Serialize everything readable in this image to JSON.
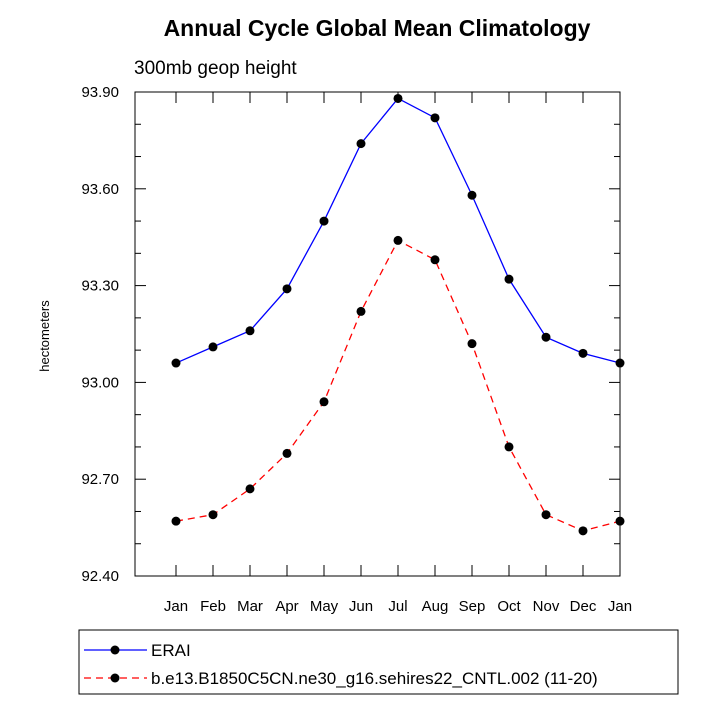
{
  "chart_data": {
    "type": "line",
    "title": "Annual Cycle Global Mean Climatology",
    "subtitle": "300mb geop height",
    "xlabel": "",
    "ylabel": "hectometers",
    "categories": [
      "Jan",
      "Feb",
      "Mar",
      "Apr",
      "May",
      "Jun",
      "Jul",
      "Aug",
      "Sep",
      "Oct",
      "Nov",
      "Dec",
      "Jan"
    ],
    "yticks": [
      "93.90",
      "93.60",
      "93.30",
      "93.00",
      "92.70",
      "92.40"
    ],
    "ylim": [
      92.4,
      93.9
    ],
    "grid": false,
    "legend_position": "bottom",
    "series": [
      {
        "name": "ERAI",
        "color": "#0000ff",
        "dash": "solid",
        "values": [
          93.06,
          93.11,
          93.16,
          93.29,
          93.5,
          93.74,
          93.88,
          93.82,
          93.58,
          93.32,
          93.14,
          93.09,
          93.06
        ]
      },
      {
        "name": "b.e13.B1850C5CN.ne30_g16.sehires22_CNTL.002 (11-20)",
        "color": "#ff0000",
        "dash": "dashed",
        "values": [
          92.57,
          92.59,
          92.67,
          92.78,
          92.94,
          93.22,
          93.44,
          93.38,
          93.12,
          92.8,
          92.59,
          92.54,
          92.57
        ]
      }
    ]
  }
}
